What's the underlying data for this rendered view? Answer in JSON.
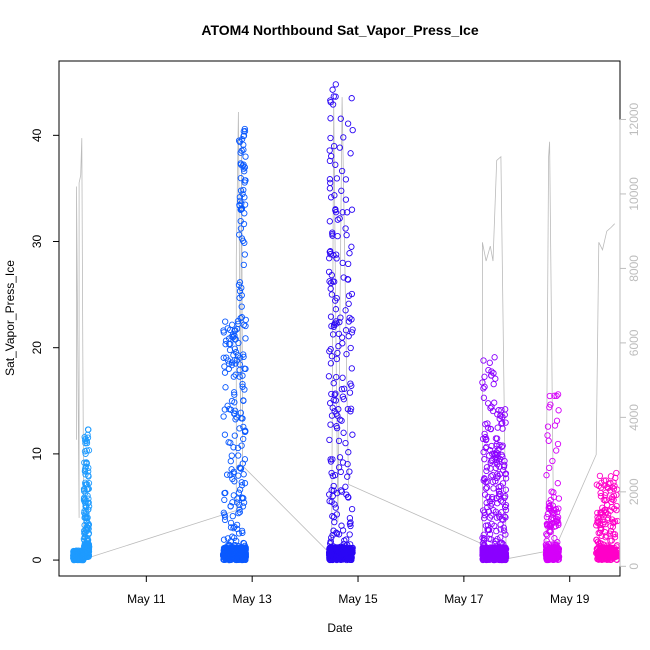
{
  "chart_data": {
    "type": "scatter",
    "title": "ATOM4 Northbound Sat_Vapor_Press_Ice",
    "xlabel": "Date",
    "ylabel": "Sat_Vapor_Press_Ice",
    "x_axis": {
      "unit": "days (May)",
      "range": [
        9.35,
        19.95
      ],
      "ticks": [
        11,
        13,
        15,
        17,
        19
      ],
      "tick_labels": [
        "May 11",
        "May 13",
        "May 15",
        "May 17",
        "May 19"
      ]
    },
    "y_axis_left": {
      "range": [
        -1.5,
        47.0
      ],
      "ticks": [
        0,
        10,
        20,
        30,
        40
      ],
      "tick_labels": [
        "0",
        "10",
        "20",
        "30",
        "40"
      ]
    },
    "y_axis_right": {
      "range": [
        -260,
        13570
      ],
      "ticks": [
        0,
        2000,
        4000,
        6000,
        8000,
        10000,
        12000
      ],
      "tick_labels": [
        "0",
        "2000",
        "4000",
        "6000",
        "8000",
        "10000",
        "12000"
      ],
      "color": "#bdbdbd"
    },
    "grid": false,
    "legend": "none",
    "series": [
      {
        "color": "#1e9bff",
        "marker": "open-circle",
        "clusters": [
          {
            "x_start": 9.62,
            "x_end": 9.82,
            "y_base": 0.0,
            "y_dense_max": 0.8,
            "y_max": 0.9
          },
          {
            "x_start": 9.82,
            "x_end": 9.92,
            "y_base": 0.3,
            "y_dense_max": 7.5,
            "y_max": 12.3
          }
        ]
      },
      {
        "color": "#0a59ff",
        "marker": "open-circle",
        "clusters": [
          {
            "x_start": 12.45,
            "x_end": 12.75,
            "y_base": 0.0,
            "y_dense_max": 18.5,
            "y_max": 22.5
          },
          {
            "x_start": 12.75,
            "x_end": 12.88,
            "y_base": 0.0,
            "y_dense_max": 33.0,
            "y_max": 40.6
          }
        ]
      },
      {
        "color": "#2b07f5",
        "marker": "open-circle",
        "clusters": [
          {
            "x_start": 14.45,
            "x_end": 14.6,
            "y_base": 0.0,
            "y_dense_max": 30.0,
            "y_max": 44.8
          },
          {
            "x_start": 14.6,
            "x_end": 14.9,
            "y_base": 0.0,
            "y_dense_max": 28.0,
            "y_max": 43.5
          }
        ]
      },
      {
        "color": "#8b00ff",
        "marker": "open-circle",
        "clusters": [
          {
            "x_start": 17.35,
            "x_end": 17.6,
            "y_base": 0.0,
            "y_dense_max": 12.0,
            "y_max": 19.1
          },
          {
            "x_start": 17.6,
            "x_end": 17.8,
            "y_base": 0.0,
            "y_dense_max": 8.5,
            "y_max": 14.2
          }
        ]
      },
      {
        "color": "#d500f9",
        "marker": "open-circle",
        "clusters": [
          {
            "x_start": 18.55,
            "x_end": 18.8,
            "y_base": 0.0,
            "y_dense_max": 6.0,
            "y_max": 15.6
          }
        ]
      },
      {
        "color": "#ff00c8",
        "marker": "open-circle",
        "clusters": [
          {
            "x_start": 19.5,
            "x_end": 19.9,
            "y_base": 0.0,
            "y_dense_max": 5.0,
            "y_max": 8.2
          }
        ]
      }
    ],
    "overlay_line": {
      "color": "#bbbbbb",
      "axis": "right",
      "points": [
        [
          9.68,
          3400
        ],
        [
          9.68,
          10200
        ],
        [
          9.73,
          1300
        ],
        [
          9.73,
          10300
        ],
        [
          9.76,
          10500
        ],
        [
          9.78,
          11500
        ],
        [
          9.8,
          5800
        ],
        [
          9.82,
          400
        ],
        [
          9.84,
          200
        ],
        [
          12.7,
          1500
        ],
        [
          12.7,
          8300
        ],
        [
          12.74,
          12200
        ],
        [
          12.78,
          4000
        ],
        [
          12.8,
          11600
        ],
        [
          12.82,
          2700
        ],
        [
          14.5,
          300
        ],
        [
          14.54,
          12500
        ],
        [
          14.58,
          6500
        ],
        [
          14.62,
          1200
        ],
        [
          14.7,
          12600
        ],
        [
          14.82,
          2200
        ],
        [
          17.35,
          600
        ],
        [
          17.35,
          8700
        ],
        [
          17.42,
          8200
        ],
        [
          17.5,
          8600
        ],
        [
          17.55,
          8200
        ],
        [
          17.62,
          10900
        ],
        [
          17.7,
          11000
        ],
        [
          17.8,
          200
        ],
        [
          18.55,
          400
        ],
        [
          18.6,
          11000
        ],
        [
          18.62,
          11400
        ],
        [
          18.7,
          400
        ],
        [
          19.5,
          3000
        ],
        [
          19.55,
          8700
        ],
        [
          19.62,
          8500
        ],
        [
          19.7,
          9000
        ],
        [
          19.78,
          9100
        ],
        [
          19.85,
          9200
        ]
      ]
    }
  }
}
